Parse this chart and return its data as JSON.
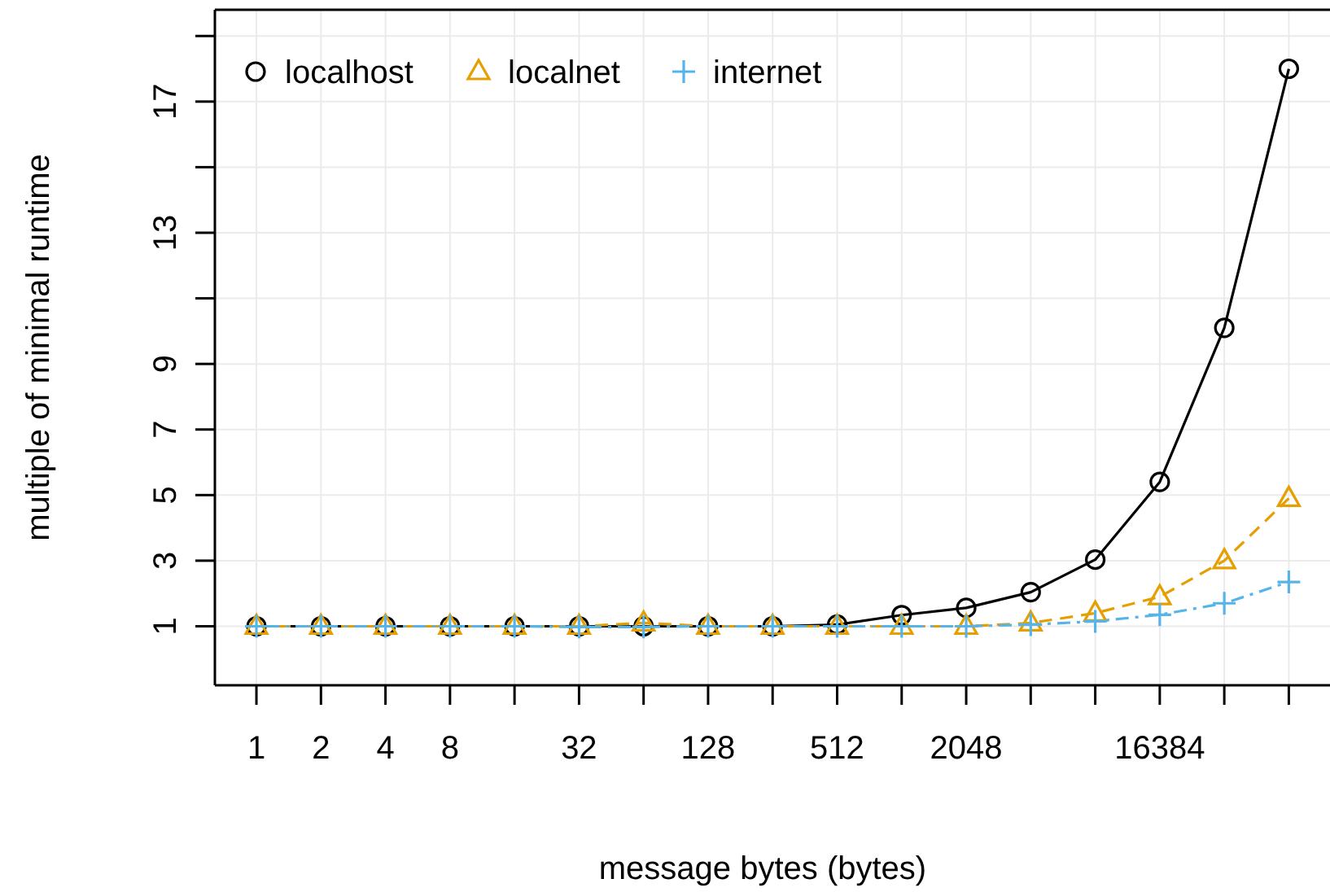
{
  "chart_data": {
    "type": "line",
    "xlabel": "message bytes (bytes)",
    "ylabel": "multiple of minimal runtime",
    "log": "x",
    "grid": true,
    "legend": "top left",
    "x": [
      1,
      2,
      4,
      8,
      16,
      32,
      64,
      128,
      256,
      512,
      1024,
      2048,
      4096,
      8192,
      16384,
      32768,
      65536
    ],
    "xlim": [
      0.64,
      102000
    ],
    "ylim": [
      -0.8,
      19.8
    ],
    "xticks": [
      1,
      2,
      4,
      8,
      {
        "value": 16,
        "label": null
      },
      32,
      {
        "value": 64,
        "label": null
      },
      128,
      {
        "value": 256,
        "label": null
      },
      512,
      {
        "value": 1024,
        "label": null
      },
      2048,
      {
        "value": 4096,
        "label": null
      },
      {
        "value": 8192,
        "label": null
      },
      16384,
      {
        "value": 32768,
        "label": null
      },
      {
        "value": 65536,
        "label": null
      }
    ],
    "yticks": [
      1,
      3,
      5,
      7,
      9,
      {
        "value": 11,
        "label": null
      },
      13,
      {
        "value": 15,
        "label": null
      },
      17,
      {
        "value": 19,
        "label": null
      }
    ],
    "series": [
      {
        "name": "localhost",
        "color": "#000000",
        "marker": "circle",
        "line_style": "solid",
        "values": [
          1,
          1,
          1,
          1,
          1,
          1,
          1,
          1,
          1,
          1.05,
          1.34,
          1.56,
          2.04,
          3.03,
          5.4,
          10.1,
          18.0
        ]
      },
      {
        "name": "localnet",
        "color": "#e69f00",
        "marker": "triangle",
        "line_style": "dashed",
        "values": [
          1,
          1,
          1,
          1,
          1,
          1,
          1.1,
          1,
          1,
          1,
          1,
          1,
          1.1,
          1.4,
          1.9,
          3.0,
          4.9
        ]
      },
      {
        "name": "internet",
        "color": "#56b4e9",
        "marker": "cross",
        "line_style": "dotted",
        "values": [
          1,
          1,
          1,
          1,
          1,
          0.98,
          0.98,
          1,
          1,
          1,
          1,
          1,
          1.05,
          1.15,
          1.35,
          1.7,
          2.35
        ]
      }
    ]
  }
}
